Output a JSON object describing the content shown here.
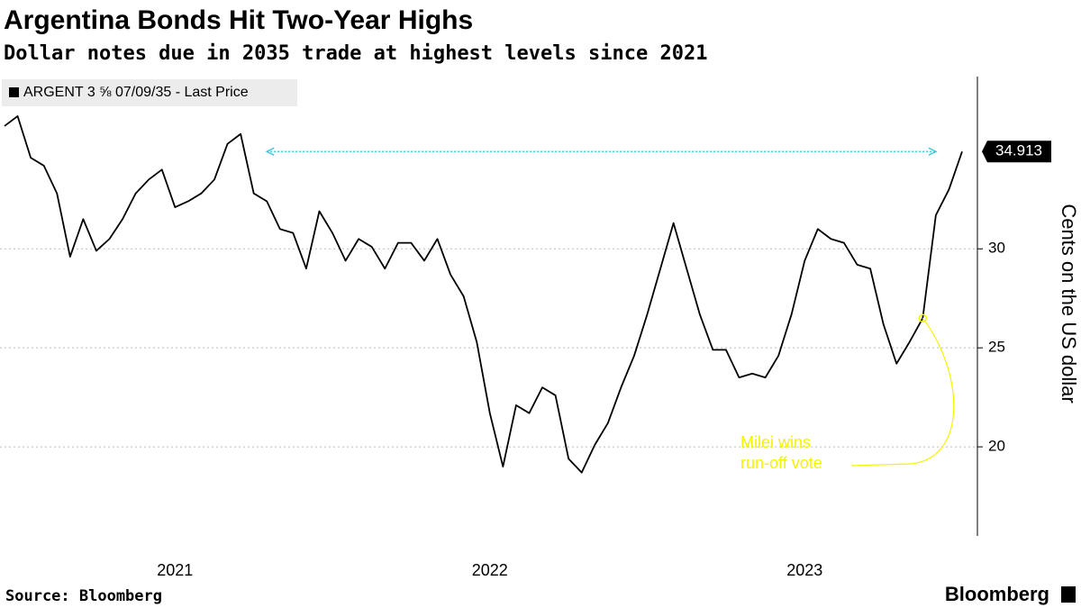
{
  "chart_data": {
    "type": "line",
    "title": "Argentina Bonds Hit Two-Year Highs",
    "subtitle": "Dollar notes due in 2035 trade at highest levels since 2021",
    "y_label": "Cents on the US dollar",
    "source": "Source: Bloomberg",
    "brand": "Bloomberg",
    "annotation": "Milei wins run-off vote",
    "categories": [
      null,
      null,
      null,
      null,
      null,
      null,
      null,
      null,
      null,
      null,
      null,
      null,
      null,
      "2021",
      null,
      null,
      null,
      null,
      null,
      null,
      null,
      null,
      null,
      null,
      null,
      null,
      null,
      null,
      null,
      null,
      null,
      null,
      null,
      null,
      null,
      null,
      null,
      "2022",
      null,
      null,
      null,
      null,
      null,
      null,
      null,
      null,
      null,
      null,
      null,
      null,
      null,
      null,
      null,
      null,
      null,
      null,
      null,
      null,
      null,
      null,
      null,
      "2023",
      null,
      null,
      null,
      null,
      null,
      null,
      null,
      null,
      null,
      null,
      null,
      null
    ],
    "series": [
      {
        "name": "ARGENT 3 ⅝ 07/09/35 - Last Price",
        "color": "#000000",
        "values": [
          36.2,
          36.7,
          34.6,
          34.2,
          32.8,
          29.6,
          31.5,
          29.9,
          30.5,
          31.5,
          32.8,
          33.5,
          34.0,
          32.1,
          32.4,
          32.8,
          33.5,
          35.3,
          35.8,
          32.8,
          32.4,
          31.0,
          30.8,
          29.0,
          31.9,
          30.8,
          29.4,
          30.5,
          30.1,
          29.0,
          30.3,
          30.3,
          29.4,
          30.5,
          28.7,
          27.6,
          25.3,
          21.7,
          19.0,
          22.1,
          21.7,
          23.0,
          22.6,
          19.4,
          18.7,
          20.1,
          21.2,
          23.0,
          24.6,
          26.7,
          29.0,
          31.3,
          29.0,
          26.7,
          24.9,
          24.9,
          23.5,
          23.7,
          23.5,
          24.6,
          26.7,
          29.4,
          31.0,
          30.5,
          30.3,
          29.2,
          29.0,
          26.2,
          24.2,
          25.3,
          26.5,
          31.7,
          33.0,
          34.913
        ]
      }
    ],
    "ylim": [
      15.5,
      38.7
    ],
    "yticks": [
      20,
      25,
      30
    ],
    "grid": true
  }
}
